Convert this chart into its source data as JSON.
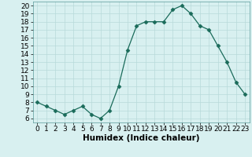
{
  "x": [
    0,
    1,
    2,
    3,
    4,
    5,
    6,
    7,
    8,
    9,
    10,
    11,
    12,
    13,
    14,
    15,
    16,
    17,
    18,
    19,
    20,
    21,
    22,
    23
  ],
  "y": [
    8.0,
    7.5,
    7.0,
    6.5,
    7.0,
    7.5,
    6.5,
    6.0,
    7.0,
    10.0,
    14.5,
    17.5,
    18.0,
    18.0,
    18.0,
    19.5,
    20.0,
    19.0,
    17.5,
    17.0,
    15.0,
    13.0,
    10.5,
    9.0
  ],
  "line_color": "#1a6b5a",
  "marker": "D",
  "marker_size": 2.5,
  "bg_color": "#d8f0f0",
  "grid_color": "#b8dada",
  "xlabel": "Humidex (Indice chaleur)",
  "xlim": [
    -0.5,
    23.5
  ],
  "ylim": [
    5.5,
    20.5
  ],
  "yticks": [
    6,
    7,
    8,
    9,
    10,
    11,
    12,
    13,
    14,
    15,
    16,
    17,
    18,
    19,
    20
  ],
  "xticks": [
    0,
    1,
    2,
    3,
    4,
    5,
    6,
    7,
    8,
    9,
    10,
    11,
    12,
    13,
    14,
    15,
    16,
    17,
    18,
    19,
    20,
    21,
    22,
    23
  ],
  "xlabel_fontsize": 7.5,
  "tick_fontsize": 6.5
}
